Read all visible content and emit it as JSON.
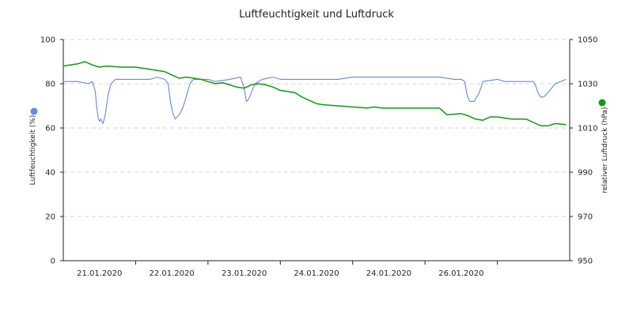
{
  "chart_data": {
    "type": "line",
    "title": "Luftfeuchtigkeit und Luftdruck",
    "ylabel_left": "Luftfeuchtigkeit (%)",
    "ylabel_right": "relativer Luftdruck (hPa)",
    "ylim_left": [
      0,
      100
    ],
    "ylim_right": [
      950,
      1050
    ],
    "yticks_left": [
      "0",
      "20",
      "40",
      "60",
      "80",
      "100"
    ],
    "yticks_right": [
      "950",
      "970",
      "990",
      "1010",
      "1030",
      "1050"
    ],
    "x_range": [
      0,
      7
    ],
    "x_tick_marks": [
      1,
      2,
      3,
      4,
      5,
      6
    ],
    "x_labels": [
      {
        "x": 0.5,
        "label": "21.01.2020"
      },
      {
        "x": 1.5,
        "label": "22.01.2020"
      },
      {
        "x": 2.5,
        "label": "23.01.2020"
      },
      {
        "x": 3.5,
        "label": "24.01.2020"
      },
      {
        "x": 4.5,
        "label": "24.01.2020"
      },
      {
        "x": 5.5,
        "label": "26.01.2020"
      }
    ],
    "grid": true,
    "colors": {
      "humidity": "#6688dd",
      "pressure": "#119911",
      "axis": "#222222",
      "grid": "#d6d6d6"
    },
    "series": [
      {
        "key": "humidity",
        "axis": "left",
        "x": [
          0,
          0.2,
          0.35,
          0.4,
          0.44,
          0.46,
          0.48,
          0.5,
          0.52,
          0.55,
          0.58,
          0.62,
          0.66,
          0.72,
          0.85,
          1.0,
          1.1,
          1.2,
          1.3,
          1.4,
          1.45,
          1.48,
          1.52,
          1.55,
          1.6,
          1.65,
          1.7,
          1.75,
          1.8,
          1.9,
          2.0,
          2.1,
          2.3,
          2.45,
          2.5,
          2.53,
          2.56,
          2.6,
          2.65,
          2.75,
          2.9,
          3.0,
          3.2,
          3.4,
          3.6,
          3.8,
          4.0,
          4.4,
          4.8,
          5.2,
          5.4,
          5.5,
          5.55,
          5.58,
          5.62,
          5.68,
          5.75,
          5.8,
          6.0,
          6.1,
          6.4,
          6.5,
          6.53,
          6.56,
          6.6,
          6.64,
          6.7,
          6.8,
          6.95
        ],
        "y": [
          81,
          81,
          80,
          81,
          77,
          70,
          65,
          63,
          64,
          62,
          66,
          75,
          80,
          82,
          82,
          82,
          82,
          82,
          83,
          82,
          80,
          72,
          66,
          64,
          66,
          69,
          74,
          80,
          82,
          82,
          82,
          81,
          82,
          83,
          78,
          72,
          73,
          76,
          80,
          82,
          83,
          82,
          82,
          82,
          82,
          82,
          83,
          83,
          83,
          83,
          82,
          82,
          81,
          75,
          72,
          72,
          76,
          81,
          82,
          81,
          81,
          81,
          79,
          76,
          74,
          74,
          76,
          80,
          82
        ]
      },
      {
        "key": "pressure",
        "axis": "right",
        "x": [
          0,
          0.2,
          0.3,
          0.4,
          0.5,
          0.6,
          0.8,
          1.0,
          1.2,
          1.3,
          1.4,
          1.5,
          1.6,
          1.7,
          1.8,
          1.9,
          2.0,
          2.1,
          2.2,
          2.3,
          2.4,
          2.5,
          2.6,
          2.7,
          2.8,
          2.9,
          3.0,
          3.1,
          3.2,
          3.3,
          3.5,
          3.6,
          3.8,
          4.0,
          4.2,
          4.3,
          4.4,
          4.5,
          4.6,
          4.7,
          4.8,
          5.0,
          5.2,
          5.3,
          5.5,
          5.6,
          5.7,
          5.8,
          5.9,
          6.0,
          6.1,
          6.2,
          6.3,
          6.4,
          6.5,
          6.6,
          6.7,
          6.8,
          6.95
        ],
        "y": [
          1038,
          1039,
          1040,
          1038.5,
          1037.5,
          1038,
          1037.5,
          1037.5,
          1036.5,
          1036,
          1035.5,
          1034,
          1032.5,
          1033,
          1032.5,
          1032,
          1031,
          1030,
          1030.5,
          1029.5,
          1028.5,
          1028,
          1029.5,
          1030,
          1029.5,
          1028.5,
          1027,
          1026.5,
          1026,
          1024,
          1021,
          1020.5,
          1020,
          1019.5,
          1019,
          1019.5,
          1019,
          1019,
          1019,
          1019,
          1019,
          1019,
          1019,
          1016,
          1016.5,
          1015.5,
          1014,
          1013.5,
          1015,
          1015,
          1014.5,
          1014,
          1014,
          1014,
          1012.5,
          1011,
          1011,
          1012,
          1011.5
        ]
      }
    ],
    "legend": "side-markers"
  }
}
